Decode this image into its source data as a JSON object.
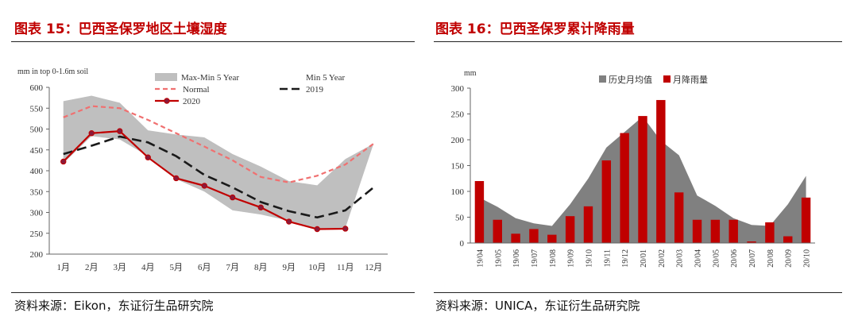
{
  "left": {
    "title": "图表 15：巴西圣保罗地区土壤湿度",
    "source": "资料来源：Eikon，东证衍生品研究院",
    "unit_label": "mm in top 0-1.6m soil",
    "legend": {
      "band": "Max-Min 5 Year",
      "min5": "Min 5 Year",
      "normal": "Normal",
      "y2019": "2019",
      "y2020": "2020"
    }
  },
  "right": {
    "title": "图表 16：巴西圣保罗累计降雨量",
    "source": "资料来源：UNICA，东证衍生品研究院",
    "unit_label": "mm",
    "legend": {
      "hist": "历史月均值",
      "rain": "月降雨量"
    }
  },
  "colors": {
    "title_red": "#c00000",
    "band_gray": "#bfbfbf",
    "normal_red": "#f07070",
    "line_black": "#1a1a1a",
    "line_2020": "#c00000",
    "area_gray": "#808080",
    "bar_red": "#c00000"
  },
  "chart_data": [
    {
      "type": "line",
      "title": "",
      "ylabel": "mm in top 0-1.6m soil",
      "ylim": [
        200,
        600
      ],
      "yticks": [
        200,
        250,
        300,
        350,
        400,
        450,
        500,
        550,
        600
      ],
      "categories": [
        "1月",
        "2月",
        "3月",
        "4月",
        "5月",
        "6月",
        "7月",
        "8月",
        "9月",
        "10月",
        "11月",
        "12月"
      ],
      "series": [
        {
          "name": "Max-Min 5 Year",
          "kind": "band",
          "upper": [
            567,
            580,
            563,
            497,
            487,
            480,
            440,
            410,
            375,
            365,
            428,
            465
          ],
          "lower": [
            418,
            483,
            475,
            435,
            380,
            350,
            305,
            295,
            280,
            262,
            263,
            465
          ]
        },
        {
          "name": "Normal",
          "values": [
            528,
            555,
            550,
            522,
            490,
            458,
            425,
            385,
            372,
            388,
            415,
            465
          ]
        },
        {
          "name": "2019",
          "values": [
            440,
            460,
            482,
            468,
            435,
            390,
            360,
            325,
            303,
            288,
            305,
            360
          ]
        },
        {
          "name": "2020",
          "values": [
            422,
            490,
            495,
            432,
            382,
            364,
            336,
            312,
            278,
            260,
            261,
            null
          ]
        }
      ],
      "legend_position": "top"
    },
    {
      "type": "bar",
      "title": "",
      "ylabel": "mm",
      "ylim": [
        0,
        300
      ],
      "yticks": [
        0,
        50,
        100,
        150,
        200,
        250,
        300
      ],
      "categories": [
        "19/04",
        "19/05",
        "19/06",
        "19/07",
        "19/08",
        "19/09",
        "19/10",
        "19/11",
        "19/12",
        "20/01",
        "20/02",
        "20/03",
        "20/04",
        "20/05",
        "20/06",
        "20/07",
        "20/08",
        "20/09",
        "20/10"
      ],
      "series": [
        {
          "name": "历史月均值",
          "kind": "area",
          "values": [
            88,
            70,
            48,
            38,
            33,
            75,
            125,
            185,
            215,
            245,
            198,
            170,
            92,
            72,
            48,
            35,
            33,
            75,
            130
          ]
        },
        {
          "name": "月降雨量",
          "kind": "bar",
          "values": [
            120,
            45,
            18,
            27,
            16,
            52,
            71,
            160,
            213,
            246,
            277,
            98,
            45,
            45,
            45,
            3,
            40,
            13,
            88
          ]
        }
      ],
      "legend_position": "top"
    }
  ]
}
